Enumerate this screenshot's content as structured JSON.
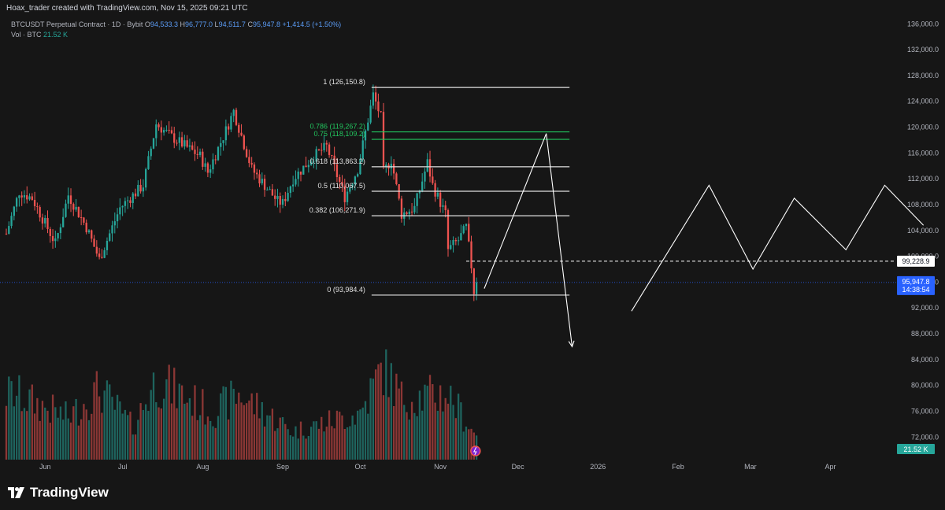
{
  "header": {
    "creator_line": "Hoax_trader created with TradingView.com, Nov 15, 2025 09:21 UTC"
  },
  "legend": {
    "symbol": "BTCUSDT Perpetual Contract · 1D · Bybit",
    "o_label": "O",
    "o_value": "94,533.3",
    "h_label": "H",
    "h_value": "96,777.0",
    "l_label": "L",
    "l_value": "94,511.7",
    "c_label": "C",
    "c_value": "95,947.8",
    "change": "+1,414.5 (+1.50%)",
    "vol_label": "Vol · BTC",
    "vol_value": "21.52 K"
  },
  "brand": {
    "name": "TradingView"
  },
  "colors": {
    "background": "#161616",
    "up": "#26a69a",
    "down": "#ef5350",
    "fib_line": "#e0e0e0",
    "fib_green": "#22c55e",
    "price_tag": "#2962ff",
    "volume_tag": "#26a69a"
  },
  "chart_data": {
    "type": "candlestick",
    "title": "BTCUSDT Perpetual Contract · 1D · Bybit",
    "y_axis": {
      "ylim": [
        68500,
        137500
      ],
      "ticks": [
        "72,000.0",
        "76,000.0",
        "80,000.0",
        "84,000.0",
        "88,000.0",
        "92,000.0",
        "96,000.0",
        "100,000.0",
        "104,000.0",
        "108,000.0",
        "112,000.0",
        "116,000.0",
        "120,000.0",
        "124,000.0",
        "128,000.0",
        "132,000.0",
        "136,000.0"
      ],
      "tick_values": [
        72000,
        76000,
        80000,
        84000,
        88000,
        92000,
        96000,
        100000,
        104000,
        108000,
        112000,
        116000,
        120000,
        124000,
        128000,
        132000,
        136000
      ],
      "position": "right"
    },
    "x_axis": {
      "labels": [
        "Jun",
        "Jul",
        "Aug",
        "Sep",
        "Oct",
        "Nov",
        "Dec",
        "2026",
        "Feb",
        "Mar",
        "Apr"
      ],
      "label_dates": [
        "2025-06-01",
        "2025-07-01",
        "2025-08-01",
        "2025-09-01",
        "2025-10-01",
        "2025-11-01",
        "2025-12-01",
        "2026-01-01",
        "2026-02-01",
        "2026-03-01",
        "2026-04-01"
      ],
      "range": [
        "2025-05-17",
        "2026-04-24"
      ]
    },
    "grid": false,
    "price_anchors": [
      [
        "2025-05-17",
        103500
      ],
      [
        "2025-05-22",
        110000
      ],
      [
        "2025-05-27",
        109000
      ],
      [
        "2025-06-05",
        102000
      ],
      [
        "2025-06-10",
        109500
      ],
      [
        "2025-06-17",
        104500
      ],
      [
        "2025-06-22",
        99500
      ],
      [
        "2025-06-30",
        107500
      ],
      [
        "2025-07-09",
        111000
      ],
      [
        "2025-07-14",
        120500
      ],
      [
        "2025-07-20",
        118500
      ],
      [
        "2025-07-31",
        115500
      ],
      [
        "2025-08-03",
        113000
      ],
      [
        "2025-08-10",
        119500
      ],
      [
        "2025-08-13",
        122500
      ],
      [
        "2025-08-20",
        113500
      ],
      [
        "2025-08-30",
        108500
      ],
      [
        "2025-09-01",
        108200
      ],
      [
        "2025-09-05",
        112000
      ],
      [
        "2025-09-13",
        115500
      ],
      [
        "2025-09-18",
        117000
      ],
      [
        "2025-09-25",
        109200
      ],
      [
        "2025-09-30",
        113500
      ],
      [
        "2025-10-06",
        125000
      ],
      [
        "2025-10-09",
        121500
      ],
      [
        "2025-10-10",
        113000
      ],
      [
        "2025-10-13",
        115000
      ],
      [
        "2025-10-17",
        106500
      ],
      [
        "2025-10-22",
        107500
      ],
      [
        "2025-10-27",
        114500
      ],
      [
        "2025-10-29",
        111000
      ],
      [
        "2025-11-03",
        106500
      ],
      [
        "2025-11-04",
        101000
      ],
      [
        "2025-11-08",
        102500
      ],
      [
        "2025-11-11",
        104500
      ],
      [
        "2025-11-13",
        98500
      ],
      [
        "2025-11-14",
        94533
      ],
      [
        "2025-11-15",
        95947.8
      ]
    ],
    "volume_anchors": [
      [
        "2025-05-20",
        0.7
      ],
      [
        "2025-06-10",
        0.45
      ],
      [
        "2025-06-22",
        0.75
      ],
      [
        "2025-07-05",
        0.35
      ],
      [
        "2025-07-14",
        0.85
      ],
      [
        "2025-08-05",
        0.5
      ],
      [
        "2025-08-15",
        0.7
      ],
      [
        "2025-09-05",
        0.3
      ],
      [
        "2025-09-25",
        0.45
      ],
      [
        "2025-10-01",
        0.5
      ],
      [
        "2025-10-10",
        1.0
      ],
      [
        "2025-10-17",
        0.65
      ],
      [
        "2025-11-04",
        0.7
      ],
      [
        "2025-11-15",
        0.25
      ]
    ],
    "last_price": 95947.8,
    "last_price_label": "95,947.8",
    "countdown": "14:38:54",
    "dashed_level": 99228.9,
    "dashed_level_label": "99,228.9",
    "volume_label": "21.52 K",
    "fib_start": "2025-10-06",
    "fib_end": "2025-12-21",
    "fib_levels": [
      {
        "ratio": "1",
        "price": 126150.8,
        "label": "1 (126,150.8)",
        "color": "#e0e0e0"
      },
      {
        "ratio": "0.786",
        "price": 119267.2,
        "label": "0.786 (119,267.2)",
        "color": "#22c55e"
      },
      {
        "ratio": "0.75",
        "price": 118109.2,
        "label": "0.75 (118,109.2)",
        "color": "#22c55e"
      },
      {
        "ratio": "0.618",
        "price": 113863.2,
        "label": "0.618 (113,863.2)",
        "color": "#e0e0e0"
      },
      {
        "ratio": "0.5",
        "price": 110067.5,
        "label": "0.5 (110,067.5)",
        "color": "#e0e0e0"
      },
      {
        "ratio": "0.382",
        "price": 106271.9,
        "label": "0.382 (106,271.9)",
        "color": "#e0e0e0"
      },
      {
        "ratio": "0",
        "price": 93984.4,
        "label": "0 (93,984.4)",
        "color": "#e0e0e0"
      }
    ],
    "projections": [
      {
        "points": [
          [
            "2025-11-18",
            95000
          ],
          [
            "2025-12-12",
            119000
          ],
          [
            "2025-12-22",
            86000
          ]
        ],
        "arrow": true
      },
      {
        "points": [
          [
            "2026-01-14",
            91500
          ],
          [
            "2026-02-13",
            111000
          ],
          [
            "2026-03-02",
            98000
          ],
          [
            "2026-03-18",
            109000
          ],
          [
            "2026-04-07",
            101000
          ],
          [
            "2026-04-22",
            111000
          ],
          [
            "2026-05-07",
            104800
          ]
        ],
        "arrow": false
      }
    ]
  }
}
